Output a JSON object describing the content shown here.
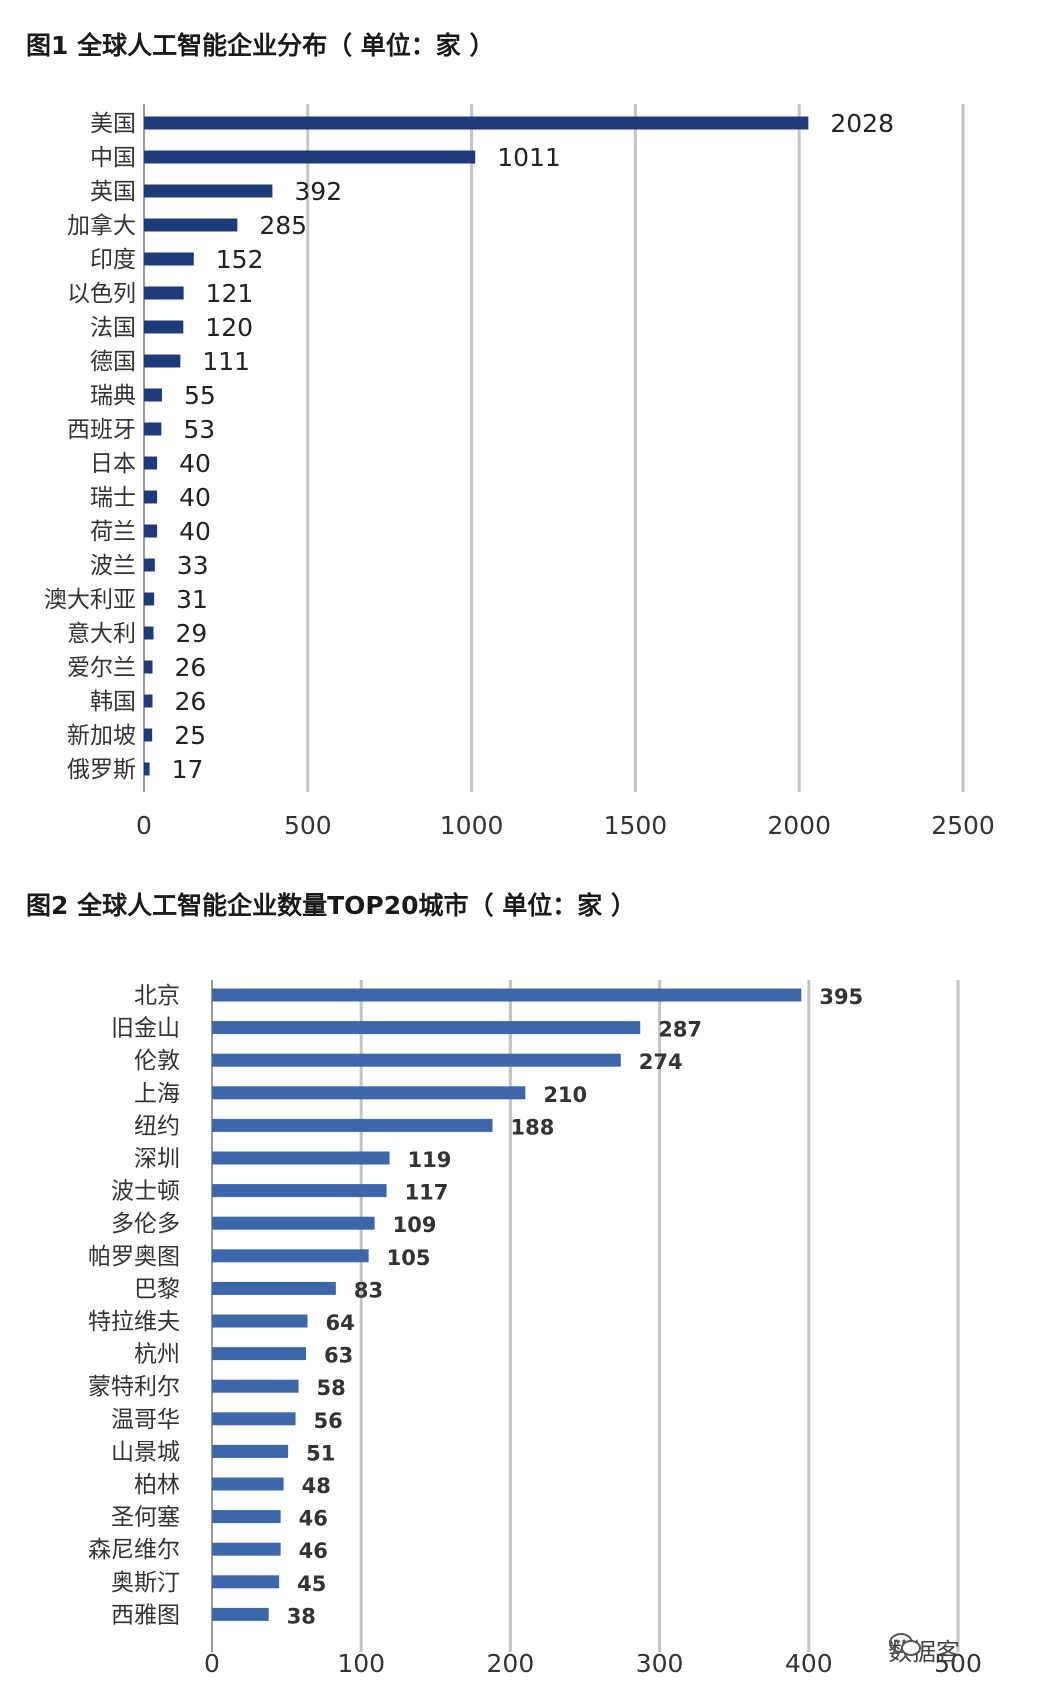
{
  "colors": {
    "bar1": "#1f3a7a",
    "bar2": "#3d67a8",
    "grid": "#c4c4c4",
    "axis": "#9a9a9a"
  },
  "chart_data": [
    {
      "type": "bar",
      "orientation": "horizontal",
      "title": "图1  全球人工智能企业分布（ 单位：家 ）",
      "categories": [
        "美国",
        "中国",
        "英国",
        "加拿大",
        "印度",
        "以色列",
        "法国",
        "德国",
        "瑞典",
        "西班牙",
        "日本",
        "瑞士",
        "荷兰",
        "波兰",
        "澳大利亚",
        "意大利",
        "爱尔兰",
        "韩国",
        "新加坡",
        "俄罗斯"
      ],
      "values": [
        2028,
        1011,
        392,
        285,
        152,
        121,
        120,
        111,
        55,
        53,
        40,
        40,
        40,
        33,
        31,
        29,
        26,
        26,
        25,
        17
      ],
      "xlim": [
        0,
        2500
      ],
      "xticks": [
        0,
        500,
        1000,
        1500,
        2000,
        2500
      ],
      "grid": true,
      "legend": "none"
    },
    {
      "type": "bar",
      "orientation": "horizontal",
      "title": "图2  全球人工智能企业数量TOP20城市（ 单位：家 ）",
      "categories": [
        "北京",
        "旧金山",
        "伦敦",
        "上海",
        "纽约",
        "深圳",
        "波士顿",
        "多伦多",
        "帕罗奥图",
        "巴黎",
        "特拉维夫",
        "杭州",
        "蒙特利尔",
        "温哥华",
        "山景城",
        "柏林",
        "圣何塞",
        "森尼维尔",
        "奥斯汀",
        "西雅图"
      ],
      "values": [
        395,
        287,
        274,
        210,
        188,
        119,
        117,
        109,
        105,
        83,
        64,
        63,
        58,
        56,
        51,
        48,
        46,
        46,
        45,
        38
      ],
      "xlim": [
        0,
        500
      ],
      "xticks": [
        0,
        100,
        200,
        300,
        400,
        500
      ],
      "grid": true,
      "legend": "none"
    }
  ],
  "watermark": {
    "icon": "wechat-logo-icon",
    "text": "数据客"
  }
}
